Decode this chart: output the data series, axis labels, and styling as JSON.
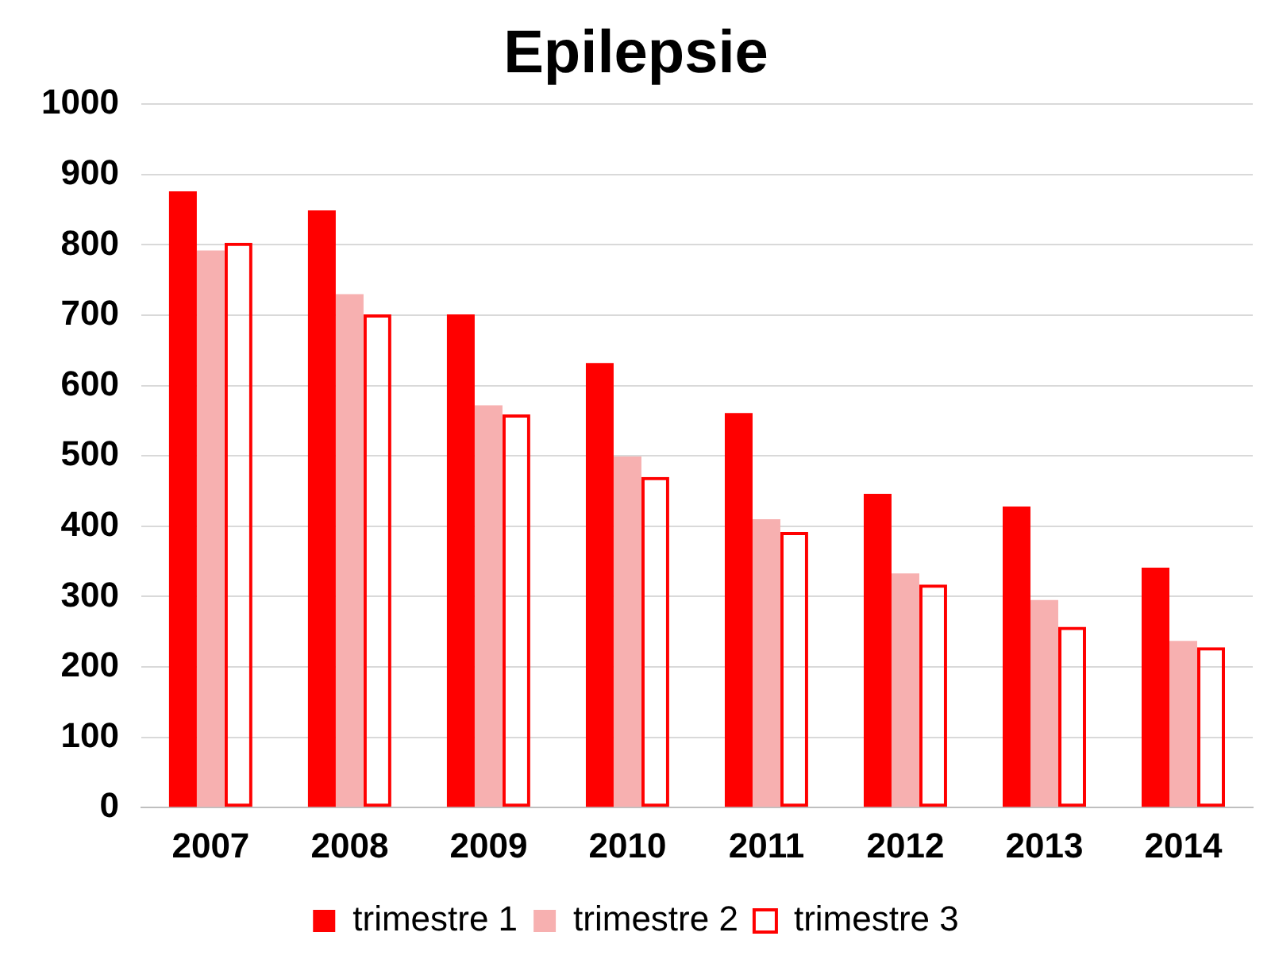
{
  "chart_data": {
    "type": "bar",
    "title": "Epilepsie",
    "categories": [
      "2007",
      "2008",
      "2009",
      "2010",
      "2011",
      "2012",
      "2013",
      "2014"
    ],
    "series": [
      {
        "name": "trimestre 1",
        "color": "#ff0000",
        "values": [
          876,
          849,
          701,
          632,
          561,
          446,
          428,
          341
        ]
      },
      {
        "name": "trimestre 2",
        "color": "#f7b0b0",
        "values": [
          792,
          730,
          572,
          499,
          410,
          333,
          295,
          237
        ]
      },
      {
        "name": "trimestre 3",
        "color": "#ff0000",
        "values": [
          803,
          701,
          559,
          470,
          392,
          317,
          257,
          228
        ]
      }
    ],
    "ylim": [
      0,
      1000
    ],
    "yticks": [
      0,
      100,
      200,
      300,
      400,
      500,
      600,
      700,
      800,
      900,
      1000
    ],
    "grid": "y",
    "legend": "bottom"
  }
}
